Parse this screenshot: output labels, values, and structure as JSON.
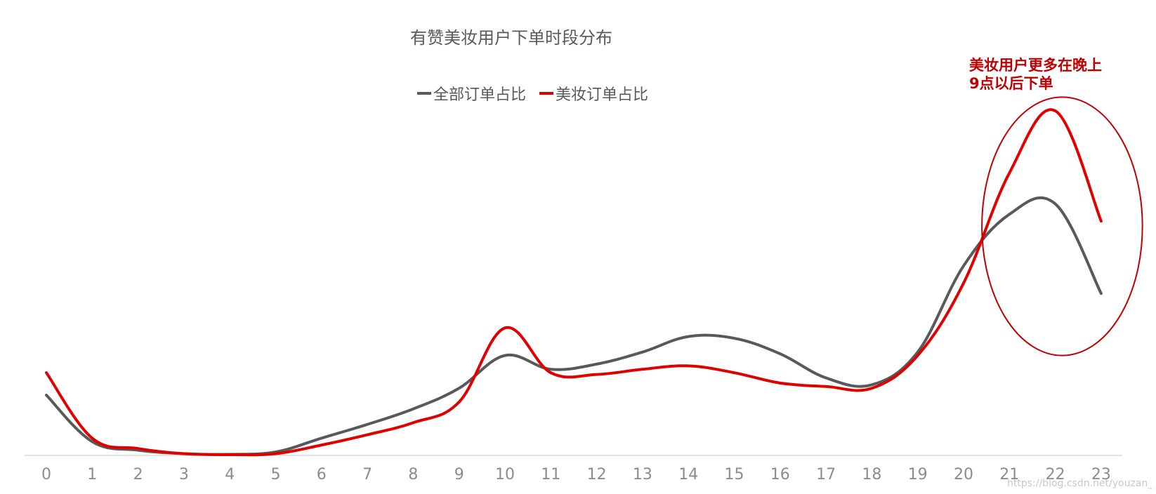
{
  "chart_data": {
    "type": "line",
    "title": "有赞美妆用户下单时段分布",
    "xlabel": "",
    "ylabel": "",
    "x": [
      0,
      1,
      2,
      3,
      4,
      5,
      6,
      7,
      8,
      9,
      10,
      11,
      12,
      13,
      14,
      15,
      16,
      17,
      18,
      19,
      20,
      21,
      22,
      23
    ],
    "ylim": [
      0,
      100
    ],
    "grid": false,
    "y_axis_labels_visible": false,
    "legend_position": "top-center",
    "series": [
      {
        "name": "全部订单占比",
        "color": "#595959",
        "values": [
          17.5,
          4.0,
          1.5,
          0.5,
          0.3,
          1.0,
          5.0,
          9.0,
          13.5,
          19.5,
          29.0,
          25.0,
          26.5,
          30.0,
          34.5,
          34.0,
          29.5,
          22.5,
          20.5,
          30.0,
          55.0,
          70.0,
          73.0,
          47.0
        ]
      },
      {
        "name": "美妆订单占比",
        "color": "#e00000",
        "values": [
          24.0,
          5.0,
          2.0,
          0.5,
          0.2,
          0.5,
          3.0,
          6.0,
          9.5,
          15.5,
          37.0,
          24.0,
          23.5,
          25.0,
          26.0,
          24.0,
          21.0,
          20.0,
          19.5,
          29.0,
          50.0,
          82.0,
          100.0,
          68.0
        ]
      }
    ],
    "annotations": [
      {
        "lines": [
          "美妆用户更多在晚上",
          "9点以后下单"
        ],
        "color": "#c00000",
        "shape": "ellipse",
        "x_range": [
          20.4,
          23.9
        ],
        "y_range": [
          29.0,
          104.0
        ]
      }
    ]
  },
  "watermark": "https://blog.csdn.net/youzan_"
}
